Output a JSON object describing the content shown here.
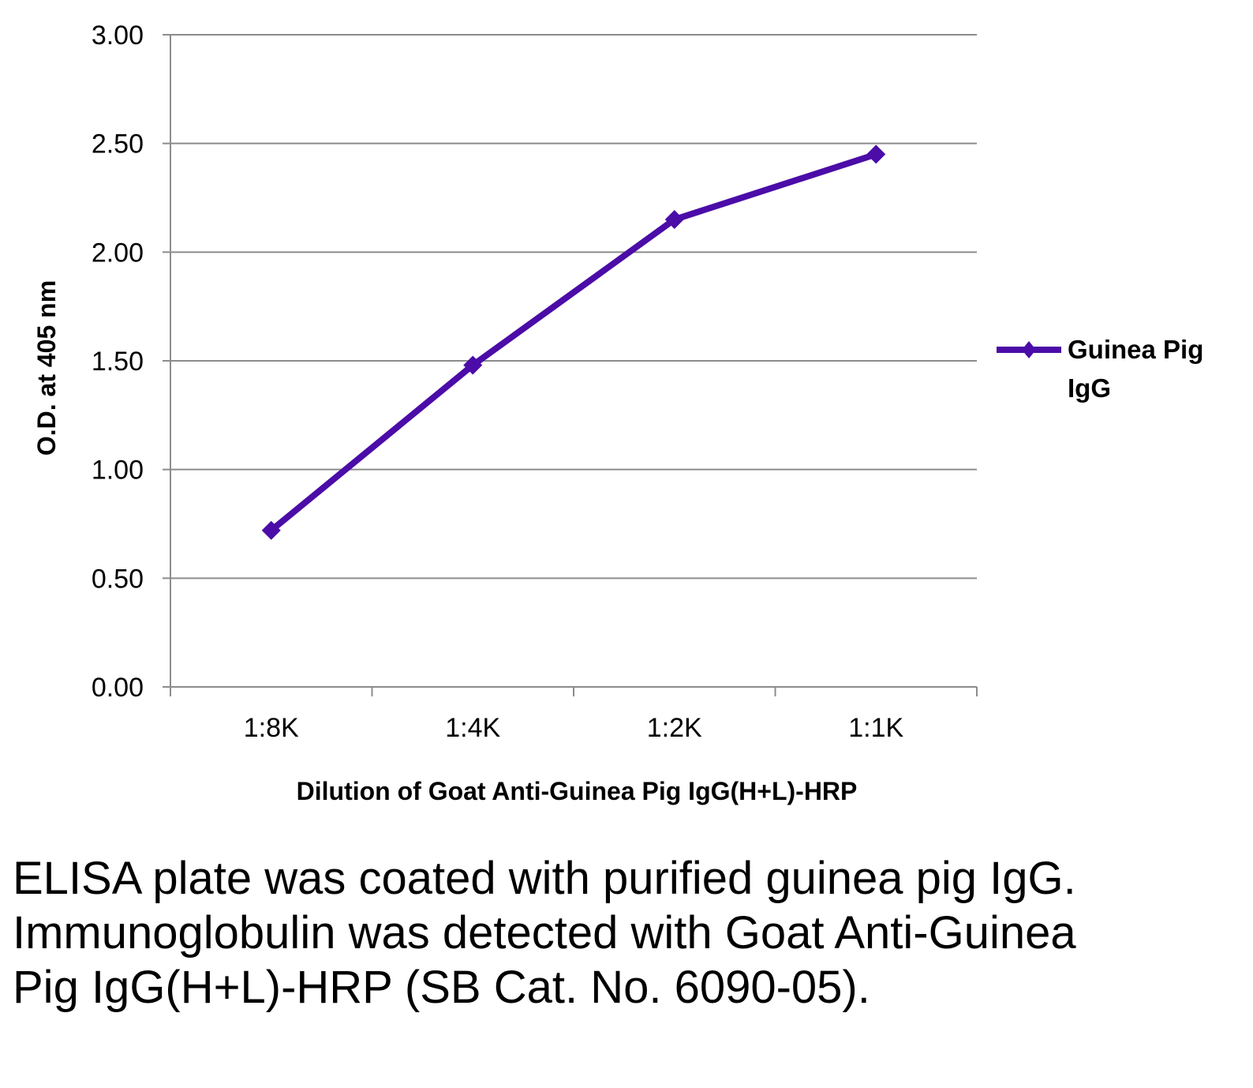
{
  "chart_data": {
    "type": "line",
    "categories": [
      "1:8K",
      "1:4K",
      "1:2K",
      "1:1K"
    ],
    "series": [
      {
        "name": "Guinea Pig IgG",
        "values": [
          0.72,
          1.48,
          2.15,
          2.45
        ],
        "color": "#4B0CA8",
        "marker": "diamond"
      }
    ],
    "xlabel": "Dilution of Goat Anti-Guinea Pig IgG(H+L)-HRP",
    "ylabel": "O.D. at 405 nm",
    "ylim": [
      0,
      3
    ],
    "yticks": [
      "0.00",
      "0.50",
      "1.00",
      "1.50",
      "2.00",
      "2.50",
      "3.00"
    ],
    "grid": true,
    "legend": {
      "position": "right",
      "lines": [
        "Guinea Pig",
        "IgG"
      ]
    }
  },
  "caption": "ELISA plate was coated with purified guinea pig IgG.  Immunoglobulin was detected with Goat Anti-Guinea Pig IgG(H+L)-HRP (SB Cat. No. 6090-05)."
}
